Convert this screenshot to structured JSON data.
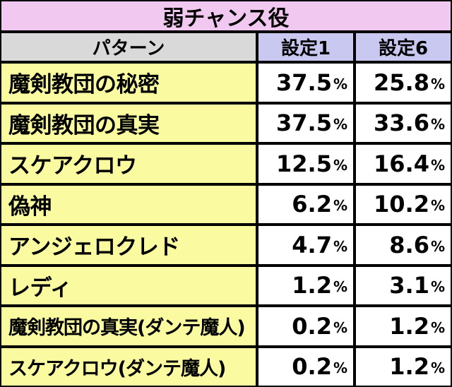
{
  "title": "弱チャンス役",
  "headers": {
    "pattern": "パターン",
    "setting1": "設定1",
    "setting6": "設定6"
  },
  "percent_sign": "%",
  "rows": [
    {
      "name": "魔剣教団の秘密",
      "s1": "37.5",
      "s6": "25.8"
    },
    {
      "name": "魔剣教団の真実",
      "s1": "37.5",
      "s6": "33.6"
    },
    {
      "name": "スケアクロウ",
      "s1": "12.5",
      "s6": "16.4"
    },
    {
      "name": "偽神",
      "s1": "6.2",
      "s6": "10.2"
    },
    {
      "name": "アンジェロクレド",
      "s1": "4.7",
      "s6": "8.6"
    },
    {
      "name": "レディ",
      "s1": "1.2",
      "s6": "3.1"
    },
    {
      "name": "魔剣教団の真実(ダンテ魔人)",
      "s1": "0.2",
      "s6": "1.2"
    },
    {
      "name": "スケアクロウ(ダンテ魔人)",
      "s1": "0.2",
      "s6": "1.2"
    }
  ],
  "colors": {
    "title_bg": "#f0c8f0",
    "header_pattern_bg": "#d9d9d9",
    "header_setting_bg": "#c8c8f0",
    "name_bg": "#fafaa0",
    "value_bg": "#ffffff"
  }
}
